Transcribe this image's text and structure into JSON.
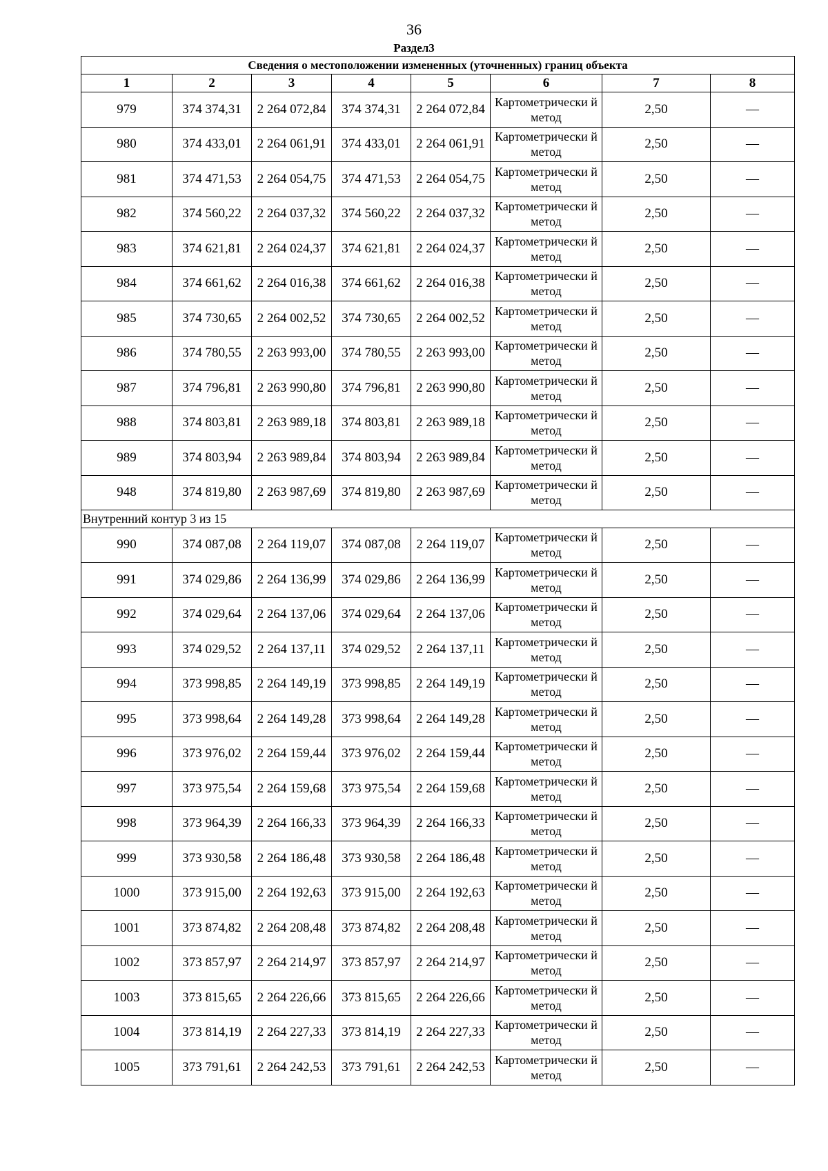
{
  "page_number": "36",
  "section": "Раздел3",
  "table": {
    "title": "Сведения о местоположении измененных (уточненных) границ объекта",
    "column_numbers": [
      "1",
      "2",
      "3",
      "4",
      "5",
      "6",
      "7",
      "8"
    ],
    "groups": [
      {
        "label": "",
        "rows": [
          [
            "979",
            "374 374,31",
            "2 264 072,84",
            "374 374,31",
            "2 264 072,84",
            "Картометрически й метод",
            "2,50",
            "—"
          ],
          [
            "980",
            "374 433,01",
            "2 264 061,91",
            "374 433,01",
            "2 264 061,91",
            "Картометрически й метод",
            "2,50",
            "—"
          ],
          [
            "981",
            "374 471,53",
            "2 264 054,75",
            "374 471,53",
            "2 264 054,75",
            "Картометрически й метод",
            "2,50",
            "—"
          ],
          [
            "982",
            "374 560,22",
            "2 264 037,32",
            "374 560,22",
            "2 264 037,32",
            "Картометрически й метод",
            "2,50",
            "—"
          ],
          [
            "983",
            "374 621,81",
            "2 264 024,37",
            "374 621,81",
            "2 264 024,37",
            "Картометрически й метод",
            "2,50",
            "—"
          ],
          [
            "984",
            "374 661,62",
            "2 264 016,38",
            "374 661,62",
            "2 264 016,38",
            "Картометрически й метод",
            "2,50",
            "—"
          ],
          [
            "985",
            "374 730,65",
            "2 264 002,52",
            "374 730,65",
            "2 264 002,52",
            "Картометрически й метод",
            "2,50",
            "—"
          ],
          [
            "986",
            "374 780,55",
            "2 263 993,00",
            "374 780,55",
            "2 263 993,00",
            "Картометрически й метод",
            "2,50",
            "—"
          ],
          [
            "987",
            "374 796,81",
            "2 263 990,80",
            "374 796,81",
            "2 263 990,80",
            "Картометрически й метод",
            "2,50",
            "—"
          ],
          [
            "988",
            "374 803,81",
            "2 263 989,18",
            "374 803,81",
            "2 263 989,18",
            "Картометрически й метод",
            "2,50",
            "—"
          ],
          [
            "989",
            "374 803,94",
            "2 263 989,84",
            "374 803,94",
            "2 263 989,84",
            "Картометрически й метод",
            "2,50",
            "—"
          ],
          [
            "948",
            "374 819,80",
            "2 263 987,69",
            "374 819,80",
            "2 263 987,69",
            "Картометрически й метод",
            "2,50",
            "—"
          ]
        ]
      },
      {
        "label": "Внутренний контур 3 из 15",
        "rows": [
          [
            "990",
            "374 087,08",
            "2 264 119,07",
            "374 087,08",
            "2 264 119,07",
            "Картометрически й метод",
            "2,50",
            "—"
          ],
          [
            "991",
            "374 029,86",
            "2 264 136,99",
            "374 029,86",
            "2 264 136,99",
            "Картометрически й метод",
            "2,50",
            "—"
          ],
          [
            "992",
            "374 029,64",
            "2 264 137,06",
            "374 029,64",
            "2 264 137,06",
            "Картометрически й метод",
            "2,50",
            "—"
          ],
          [
            "993",
            "374 029,52",
            "2 264 137,11",
            "374 029,52",
            "2 264 137,11",
            "Картометрически й метод",
            "2,50",
            "—"
          ],
          [
            "994",
            "373 998,85",
            "2 264 149,19",
            "373 998,85",
            "2 264 149,19",
            "Картометрически й метод",
            "2,50",
            "—"
          ],
          [
            "995",
            "373 998,64",
            "2 264 149,28",
            "373 998,64",
            "2 264 149,28",
            "Картометрически й метод",
            "2,50",
            "—"
          ],
          [
            "996",
            "373 976,02",
            "2 264 159,44",
            "373 976,02",
            "2 264 159,44",
            "Картометрически й метод",
            "2,50",
            "—"
          ],
          [
            "997",
            "373 975,54",
            "2 264 159,68",
            "373 975,54",
            "2 264 159,68",
            "Картометрически й метод",
            "2,50",
            "—"
          ],
          [
            "998",
            "373 964,39",
            "2 264 166,33",
            "373 964,39",
            "2 264 166,33",
            "Картометрически й метод",
            "2,50",
            "—"
          ],
          [
            "999",
            "373 930,58",
            "2 264 186,48",
            "373 930,58",
            "2 264 186,48",
            "Картометрически й метод",
            "2,50",
            "—"
          ],
          [
            "1000",
            "373 915,00",
            "2 264 192,63",
            "373 915,00",
            "2 264 192,63",
            "Картометрически й метод",
            "2,50",
            "—"
          ],
          [
            "1001",
            "373 874,82",
            "2 264 208,48",
            "373 874,82",
            "2 264 208,48",
            "Картометрически й метод",
            "2,50",
            "—"
          ],
          [
            "1002",
            "373 857,97",
            "2 264 214,97",
            "373 857,97",
            "2 264 214,97",
            "Картометрически й метод",
            "2,50",
            "—"
          ],
          [
            "1003",
            "373 815,65",
            "2 264 226,66",
            "373 815,65",
            "2 264 226,66",
            "Картометрически й метод",
            "2,50",
            "—"
          ],
          [
            "1004",
            "373 814,19",
            "2 264 227,33",
            "373 814,19",
            "2 264 227,33",
            "Картометрически й метод",
            "2,50",
            "—"
          ],
          [
            "1005",
            "373 791,61",
            "2 264 242,53",
            "373 791,61",
            "2 264 242,53",
            "Картометрически й метод",
            "2,50",
            "—"
          ]
        ]
      }
    ]
  }
}
